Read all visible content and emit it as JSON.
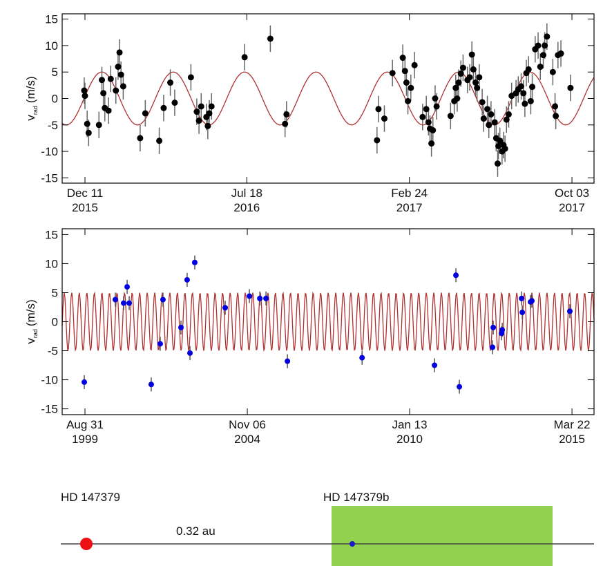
{
  "chart_data": [
    {
      "type": "scatter",
      "ylabel": {
        "symbol": "v",
        "subscript": "rad",
        "unit": "(m/s)"
      },
      "xlim": [
        "2015-11-10",
        "2017-11-02"
      ],
      "xticks": [
        {
          "value": "2015-12-11",
          "label": [
            "Dec 11",
            "2015"
          ]
        },
        {
          "value": "2016-07-18",
          "label": [
            "Jul 18",
            "2016"
          ]
        },
        {
          "value": "2017-02-24",
          "label": [
            "Feb 24",
            "2017"
          ]
        },
        {
          "value": "2017-10-03",
          "label": [
            "Oct 03",
            "2017"
          ]
        }
      ],
      "ylim": [
        -16,
        16
      ],
      "yticks": [
        -15,
        -10,
        -5,
        0,
        5,
        10,
        15
      ],
      "grid": false,
      "color": "#000000",
      "error": 2.5,
      "x": [
        "2015-12-10",
        "2015-12-11",
        "2015-12-14",
        "2015-12-16",
        "2015-12-30",
        "2016-01-03",
        "2016-01-05",
        "2016-01-07",
        "2016-01-12",
        "2016-01-15",
        "2016-01-22",
        "2016-01-25",
        "2016-01-27",
        "2016-01-29",
        "2016-02-01",
        "2016-02-24",
        "2016-03-02",
        "2016-03-21",
        "2016-03-27",
        "2016-04-05",
        "2016-04-11",
        "2016-05-03",
        "2016-05-11",
        "2016-05-14",
        "2016-05-17",
        "2016-05-24",
        "2016-05-26",
        "2016-05-28",
        "2016-05-31",
        "2016-07-15",
        "2016-08-19",
        "2016-09-08",
        "2016-09-10",
        "2017-01-11",
        "2017-01-13",
        "2017-01-21",
        "2017-02-01",
        "2017-02-15",
        "2017-02-18",
        "2017-02-20",
        "2017-02-22",
        "2017-02-26",
        "2017-03-03",
        "2017-03-14",
        "2017-03-19",
        "2017-03-22",
        "2017-03-24",
        "2017-03-26",
        "2017-03-28",
        "2017-03-31",
        "2017-04-02",
        "2017-04-21",
        "2017-04-26",
        "2017-04-28",
        "2017-04-30",
        "2017-05-02",
        "2017-05-05",
        "2017-05-08",
        "2017-05-14",
        "2017-05-17",
        "2017-05-20",
        "2017-05-22",
        "2017-05-25",
        "2017-05-27",
        "2017-05-30",
        "2017-06-03",
        "2017-06-05",
        "2017-06-10",
        "2017-06-12",
        "2017-06-15",
        "2017-06-20",
        "2017-06-22",
        "2017-06-24",
        "2017-06-25",
        "2017-06-27",
        "2017-06-30",
        "2017-07-02",
        "2017-07-04",
        "2017-07-06",
        "2017-07-09",
        "2017-07-13",
        "2017-07-19",
        "2017-07-22",
        "2017-07-26",
        "2017-07-29",
        "2017-07-31",
        "2017-08-02",
        "2017-08-05",
        "2017-08-08",
        "2017-08-10",
        "2017-08-14",
        "2017-08-18",
        "2017-08-21",
        "2017-08-25",
        "2017-08-27",
        "2017-08-30",
        "2017-09-07",
        "2017-09-10",
        "2017-09-11",
        "2017-09-14",
        "2017-09-18",
        "2017-10-01"
      ],
      "values": [
        1.5,
        0.5,
        -4.8,
        -6.5,
        -5,
        3.5,
        1,
        -1.8,
        -2.3,
        3.7,
        1.5,
        6,
        8.7,
        4.5,
        2.3,
        -7.5,
        -2.8,
        -8,
        -1.8,
        3,
        -0.8,
        4,
        -2.5,
        -4.2,
        -1.5,
        -3.5,
        -5.2,
        -2.8,
        -1.5,
        7.8,
        11.3,
        -4.8,
        -3,
        -7.9,
        -2,
        -3.8,
        4.8,
        7.7,
        5.2,
        3,
        -0.5,
        2,
        6.3,
        -3.5,
        -2,
        -4.5,
        -5.7,
        -8.5,
        -6,
        0,
        -1.5,
        -3.3,
        -0.5,
        2,
        0,
        3,
        4.7,
        5.8,
        3.5,
        4,
        8.3,
        5.5,
        3,
        2,
        4,
        -0.7,
        -3.8,
        -2,
        -5,
        -3,
        -4.5,
        -7.5,
        -12.3,
        -9,
        -8,
        -10,
        -8.8,
        -9.5,
        -4,
        -3,
        0.5,
        1,
        1.7,
        2.3,
        1,
        -1,
        4.8,
        5.5,
        -0.5,
        2.2,
        9.3,
        10,
        6,
        8.2,
        10,
        11.7,
        5,
        -1.5,
        -3.3,
        8.2,
        8.5,
        2
      ],
      "model": {
        "color": "#b03030",
        "amplitude": 5,
        "period": 97,
        "peak": "2016-01-03"
      }
    },
    {
      "type": "scatter",
      "ylabel": {
        "symbol": "v",
        "subscript": "rad",
        "unit": "(m/s)"
      },
      "xlim": [
        "1998-12-08",
        "2015-12-04"
      ],
      "xticks": [
        {
          "value": "1999-08-31",
          "label": [
            "Aug 31",
            "1999"
          ]
        },
        {
          "value": "2004-11-06",
          "label": [
            "Nov 06",
            "2004"
          ]
        },
        {
          "value": "2010-01-13",
          "label": [
            "Jan 13",
            "2010"
          ]
        },
        {
          "value": "2015-03-22",
          "label": [
            "Mar 22",
            "2015"
          ]
        }
      ],
      "ylim": [
        -16,
        16
      ],
      "yticks": [
        -15,
        -10,
        -5,
        0,
        5,
        10,
        15
      ],
      "grid": false,
      "color": "#0000e0",
      "error": 1.2,
      "x": [
        "1999-08-23",
        "2000-08-19",
        "2000-11-24",
        "2001-01-04",
        "2001-01-28",
        "2001-10-12",
        "2002-01-25",
        "2002-02-26",
        "2002-09-24",
        "2002-12-05",
        "2003-01-07",
        "2003-03-04",
        "2004-02-22",
        "2004-11-30",
        "2005-04-01",
        "2005-06-12",
        "2006-02-17",
        "2008-07-07",
        "2010-10-30",
        "2011-07-07",
        "2011-08-16",
        "2012-09-06",
        "2012-09-14",
        "2012-12-20",
        "2012-12-28",
        "2013-08-11",
        "2013-08-19",
        "2013-11-23",
        "2013-12-09",
        "2015-02-25"
      ],
      "values": [
        -10.4,
        3.8,
        3.2,
        6,
        3.2,
        -10.8,
        -3.8,
        3.8,
        -1,
        7.2,
        -5.4,
        10.2,
        2.4,
        4.4,
        4,
        4,
        -6.8,
        -6.2,
        -7.5,
        8,
        -11.2,
        -4.4,
        -1,
        -2,
        -1.4,
        4,
        1.6,
        3.4,
        3.6,
        1.8
      ],
      "model": {
        "color": "#b03030",
        "amplitude": 5,
        "period": 88,
        "peak": "1999-01-01"
      }
    }
  ],
  "diagram": {
    "star": "HD 147379",
    "planet": "HD 147379b",
    "distance": "0.32 au"
  }
}
